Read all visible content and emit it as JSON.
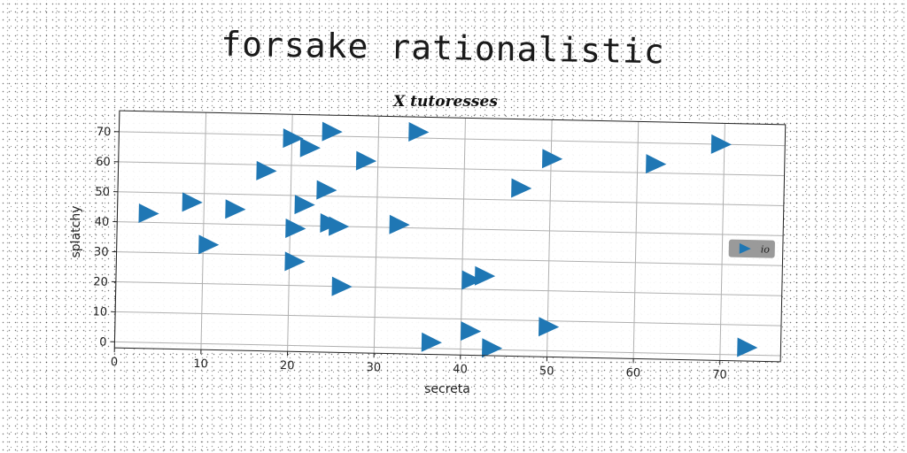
{
  "page_title": "forsake rationalistic",
  "chart_data": {
    "type": "scatter",
    "title": "X tutoresses",
    "xlabel": "secreta",
    "ylabel": "splatchy",
    "xlim": [
      0,
      77
    ],
    "ylim": [
      -2,
      77
    ],
    "xticks": [
      "0",
      "10",
      "20",
      "30",
      "40",
      "50",
      "60",
      "70"
    ],
    "yticks": [
      "0",
      "10",
      "20",
      "30",
      "40",
      "50",
      "60",
      "70"
    ],
    "grid": true,
    "legend_position": "center-right",
    "marker": "triangle-right",
    "series": [
      {
        "name": "io",
        "color": "#1f77b4",
        "points": [
          [
            3.5,
            43
          ],
          [
            8.5,
            47
          ],
          [
            10.5,
            33
          ],
          [
            13.5,
            45
          ],
          [
            17,
            58
          ],
          [
            20,
            69
          ],
          [
            22,
            66
          ],
          [
            24.5,
            71.5
          ],
          [
            20.5,
            39
          ],
          [
            21.5,
            47
          ],
          [
            24,
            52
          ],
          [
            24.5,
            41
          ],
          [
            25.5,
            40
          ],
          [
            20.5,
            28
          ],
          [
            26,
            20
          ],
          [
            28.5,
            62
          ],
          [
            32.5,
            41
          ],
          [
            34.5,
            72
          ],
          [
            36.5,
            2
          ],
          [
            41,
            23
          ],
          [
            42.5,
            24.5
          ],
          [
            41,
            6
          ],
          [
            43.5,
            0.5
          ],
          [
            46.5,
            54
          ],
          [
            50,
            64
          ],
          [
            50,
            8
          ],
          [
            62,
            63
          ],
          [
            69.5,
            70
          ],
          [
            73,
            2.5
          ]
        ]
      }
    ]
  }
}
